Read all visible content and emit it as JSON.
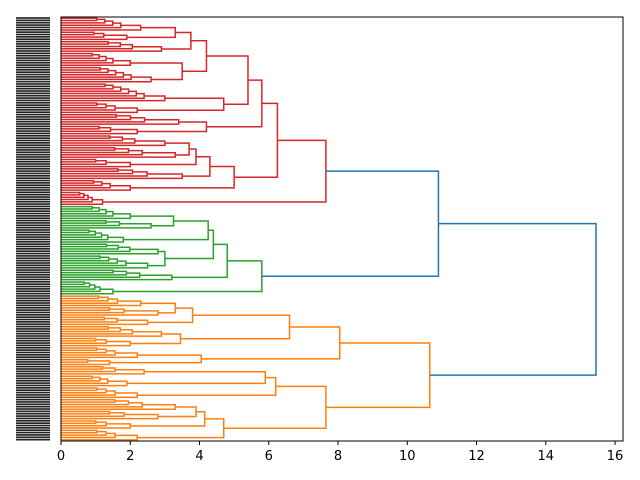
{
  "chart_data": {
    "type": "dendrogram",
    "orientation": "leaves-left",
    "title": "",
    "xlabel": "",
    "ylabel": "",
    "xlim": [
      0,
      16.23
    ],
    "xticks": [
      "0",
      "2",
      "4",
      "6",
      "8",
      "10",
      "12",
      "14",
      "16"
    ],
    "grid": false,
    "colors": {
      "red": "#d62728",
      "green": "#2ca02c",
      "orange": "#ff7f0e",
      "above_threshold": "#1f77b4"
    },
    "tree": {
      "h": 15.45,
      "color": "above_threshold",
      "c": [
        {
          "h": 10.9,
          "color": "above_threshold",
          "c": [
            {
              "h": 7.65,
              "color": "red",
              "c": [
                {
                  "h": 6.25,
                  "c": [
                    {
                      "h": 5.8,
                      "c": [
                        {
                          "h": 5.4,
                          "c": [
                            {
                              "h": 4.2,
                              "c": [
                                {
                                  "h": 3.75,
                                  "c": [
                                    {
                                      "h": 3.3,
                                      "c": [
                                        {
                                          "n": 6,
                                          "h": 2.3
                                        },
                                        {
                                          "n": 4,
                                          "h": 1.9
                                        }
                                      ]
                                    },
                                    {
                                      "n": 5,
                                      "h": 2.9
                                    }
                                  ]
                                },
                                {
                                  "h": 3.5,
                                  "c": [
                                    {
                                      "n": 6,
                                      "h": 2.0
                                    },
                                    {
                                      "n": 7,
                                      "h": 2.6
                                    }
                                  ]
                                }
                              ]
                            },
                            {
                              "h": 4.7,
                              "c": [
                                {
                                  "n": 8,
                                  "h": 3.0
                                },
                                {
                                  "n": 5,
                                  "h": 2.2
                                }
                              ]
                            }
                          ]
                        },
                        {
                          "h": 4.2,
                          "c": [
                            {
                              "n": 5,
                              "h": 3.4
                            },
                            {
                              "n": 4,
                              "h": 2.2
                            }
                          ]
                        }
                      ]
                    },
                    {
                      "h": 5.0,
                      "c": [
                        {
                          "h": 4.3,
                          "c": [
                            {
                              "h": 3.9,
                              "c": [
                                {
                                  "h": 3.7,
                                  "c": [
                                    {
                                      "n": 5,
                                      "h": 3.0
                                    },
                                    {
                                      "n": 5,
                                      "h": 3.3
                                    }
                                  ]
                                },
                                {
                                  "n": 4,
                                  "h": 2.0
                                }
                              ]
                            },
                            {
                              "n": 5,
                              "h": 3.5
                            }
                          ]
                        },
                        {
                          "n": 5,
                          "h": 2.0
                        }
                      ]
                    }
                  ]
                },
                {
                  "n": 6,
                  "h": 1.2
                }
              ]
            },
            {
              "h": 5.8,
              "color": "green",
              "c": [
                {
                  "h": 4.8,
                  "c": [
                    {
                      "h": 4.4,
                      "c": [
                        {
                          "h": 4.25,
                          "c": [
                            {
                              "h": 3.25,
                              "c": [
                                {
                                  "n": 6,
                                  "h": 2.0
                                },
                                {
                                  "n": 4,
                                  "h": 2.6
                                }
                              ]
                            },
                            {
                              "n": 6,
                              "h": 1.8
                            }
                          ]
                        },
                        {
                          "h": 3.0,
                          "c": [
                            {
                              "n": 5,
                              "h": 2.8
                            },
                            {
                              "n": 6,
                              "h": 2.5
                            }
                          ]
                        }
                      ]
                    },
                    {
                      "n": 5,
                      "h": 3.2
                    }
                  ]
                },
                {
                  "n": 6,
                  "h": 1.5
                }
              ]
            }
          ]
        },
        {
          "h": 10.65,
          "color": "orange",
          "c": [
            {
              "h": 8.05,
              "c": [
                {
                  "h": 6.6,
                  "c": [
                    {
                      "h": 3.8,
                      "c": [
                        {
                          "h": 3.3,
                          "c": [
                            {
                              "n": 5,
                              "h": 2.3
                            },
                            {
                              "n": 4,
                              "h": 2.8
                            }
                          ]
                        },
                        {
                          "n": 4,
                          "h": 2.5
                        }
                      ]
                    },
                    {
                      "h": 3.45,
                      "c": [
                        {
                          "n": 5,
                          "h": 2.9
                        },
                        {
                          "n": 4,
                          "h": 2.0
                        }
                      ]
                    }
                  ]
                },
                {
                  "h": 4.05,
                  "c": [
                    {
                      "n": 5,
                      "h": 2.2
                    },
                    {
                      "n": 3,
                      "h": 1.4
                    }
                  ]
                }
              ]
            },
            {
              "h": 7.65,
              "c": [
                {
                  "h": 6.2,
                  "c": [
                    {
                      "h": 5.9,
                      "c": [
                        {
                          "n": 4,
                          "h": 2.4
                        },
                        {
                          "n": 5,
                          "h": 1.9
                        }
                      ]
                    },
                    {
                      "n": 5,
                      "h": 2.2
                    }
                  ]
                },
                {
                  "h": 4.7,
                  "c": [
                    {
                      "h": 4.15,
                      "c": [
                        {
                          "h": 3.9,
                          "c": [
                            {
                              "n": 5,
                              "h": 3.3
                            },
                            {
                              "n": 4,
                              "h": 2.8
                            }
                          ]
                        },
                        {
                          "n": 4,
                          "h": 2.0
                        }
                      ]
                    },
                    {
                      "n": 5,
                      "h": 2.2
                    }
                  ]
                }
              ]
            }
          ]
        }
      ]
    }
  }
}
